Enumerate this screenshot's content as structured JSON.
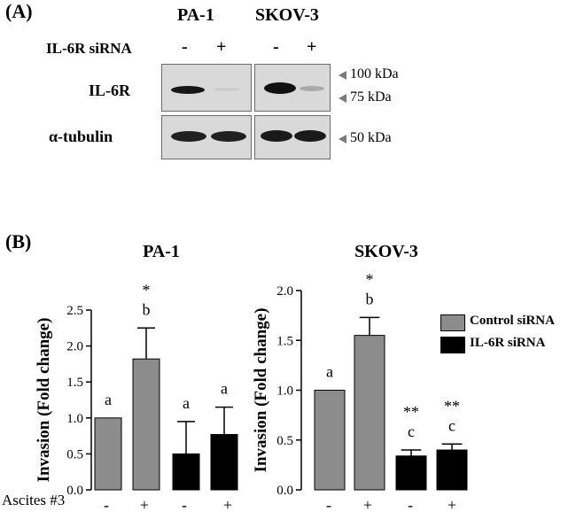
{
  "panel_a": {
    "label": "(A)",
    "cell_lines": [
      "PA-1",
      "SKOV-3"
    ],
    "treatment_label": "IL-6R siRNA",
    "treatment_signs": [
      "-",
      "+",
      "-",
      "+"
    ],
    "row_labels": [
      "IL-6R",
      "α-tubulin"
    ],
    "markers": [
      "100 kDa",
      "75 kDa",
      "50 kDa"
    ]
  },
  "panel_b": {
    "label": "(B)",
    "x_axis_label": "Ascites #3",
    "legend": [
      "Control siRNA",
      "IL-6R siRNA"
    ]
  },
  "colors": {
    "control": "#8c8c8c",
    "il6r": "#000000"
  },
  "chart_data": [
    {
      "type": "bar",
      "title": "PA-1",
      "ylabel": "Invasion (Fold change)",
      "ylim": [
        0,
        2.5
      ],
      "yticks": [
        "0.0",
        "0.5",
        "1.0",
        "1.5",
        "2.0",
        "2.5"
      ],
      "categories": [
        "-",
        "+",
        "-",
        "+"
      ],
      "values": [
        1.0,
        1.82,
        0.5,
        0.77
      ],
      "errors": [
        0,
        0.43,
        0.45,
        0.38
      ],
      "groups": [
        "control",
        "control",
        "il6r",
        "il6r"
      ],
      "letters": [
        "a",
        "b",
        "a",
        "a"
      ],
      "stars": [
        "",
        "*",
        "",
        ""
      ]
    },
    {
      "type": "bar",
      "title": "SKOV-3",
      "ylabel": "Invasion (Fold change)",
      "ylim": [
        0,
        2.0
      ],
      "yticks": [
        "0.0",
        "0.5",
        "1.0",
        "1.5",
        "2.0"
      ],
      "categories": [
        "-",
        "+",
        "-",
        "+"
      ],
      "values": [
        1.0,
        1.55,
        0.34,
        0.4
      ],
      "errors": [
        0,
        0.18,
        0.06,
        0.06
      ],
      "groups": [
        "control",
        "control",
        "il6r",
        "il6r"
      ],
      "letters": [
        "a",
        "b",
        "c",
        "c"
      ],
      "stars": [
        "",
        "*",
        "**",
        "**"
      ]
    }
  ]
}
